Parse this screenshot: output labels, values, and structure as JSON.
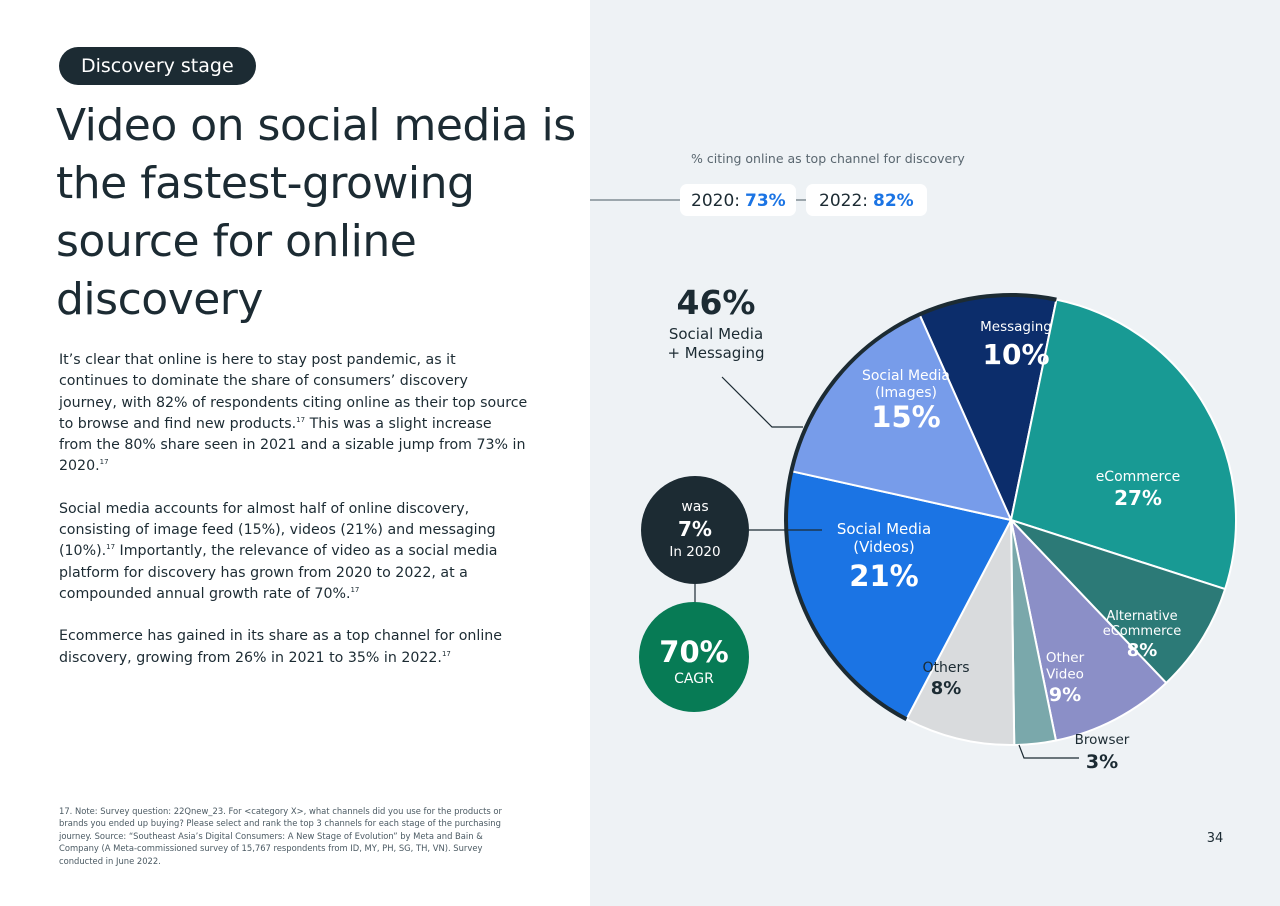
{
  "tag": "Discovery stage",
  "title": "Video on social media is the fastest-growing source for online discovery",
  "body": {
    "p1": "It’s clear that online is here to stay post pandemic, as it continues to dominate the share of consumers’ discovery journey, with 82% of respondents citing online as their top source to browse and find new products.",
    "p1b": " This was a slight increase from the 80% share seen in 2021 and a sizable jump from 73% in 2020.",
    "p2": "Social media accounts for almost half of online discovery, consisting of image feed (15%), videos (21%) and messaging (10%).",
    "p2b": " Importantly, the relevance of video as a social media platform for discovery has grown from 2020 to 2022, at a compounded annual growth rate of 70%.",
    "p3": "Ecommerce has gained in its share as a top channel for online discovery, growing from 26% in 2021 to 35% in 2022.",
    "ref": "17"
  },
  "footnote": "17. Note: Survey question: 22Qnew_23. For <category X>, what channels did you use for the products or brands you ended up buying? Please select and rank the top 3 channels for each stage of the purchasing journey. Source: “Southeast Asia’s Digital Consumers: A New Stage of Evolution” by Meta and Bain & Company (A Meta-commissioned survey of 15,767 respondents from ID, MY, PH, SG, TH, VN). Survey conducted in June 2022.",
  "page_number": "34",
  "chart_data": {
    "type": "pie",
    "subtitle": "% citing online as top channel for discovery",
    "online_share": [
      {
        "year": "2020:",
        "value": "73%"
      },
      {
        "year": "2022:",
        "value": "82%"
      }
    ],
    "slices": [
      {
        "label": [
          "Messaging"
        ],
        "value": 10,
        "value_label": "10%",
        "color": "#0c2d6b",
        "label_color": "#ffffff"
      },
      {
        "label": [
          "eCommerce"
        ],
        "value": 27,
        "value_label": "27%",
        "color": "#189a94",
        "label_color": "#ffffff"
      },
      {
        "label": [
          "Alternative",
          "eCommerce"
        ],
        "value": 8,
        "value_label": "8%",
        "color": "#2c7a77",
        "label_color": "#ffffff"
      },
      {
        "label": [
          "Other",
          "Video"
        ],
        "value": 9,
        "value_label": "9%",
        "color": "#8b8fc7",
        "label_color": "#ffffff"
      },
      {
        "label": [
          "Browser"
        ],
        "value": 3,
        "value_label": "3%",
        "color": "#7aa8ab",
        "label_color": "#1c2b33"
      },
      {
        "label": [
          "Others"
        ],
        "value": 8,
        "value_label": "8%",
        "color": "#d9dbdd",
        "label_color": "#1c2b33"
      },
      {
        "label": [
          "Social Media",
          "(Videos)"
        ],
        "value": 21,
        "value_label": "21%",
        "color": "#1b74e4",
        "label_color": "#ffffff"
      },
      {
        "label": [
          "Social Media",
          "(Images)"
        ],
        "value": 15,
        "value_label": "15%",
        "color": "#779cea",
        "label_color": "#ffffff"
      }
    ],
    "social_messaging_total": {
      "value": "46%",
      "label": [
        "Social Media",
        "+ Messaging"
      ]
    },
    "video_2020": {
      "prefix": "was",
      "value": "7%",
      "suffix": "In 2020"
    },
    "video_cagr": {
      "value": "70%",
      "label": "CAGR"
    }
  }
}
